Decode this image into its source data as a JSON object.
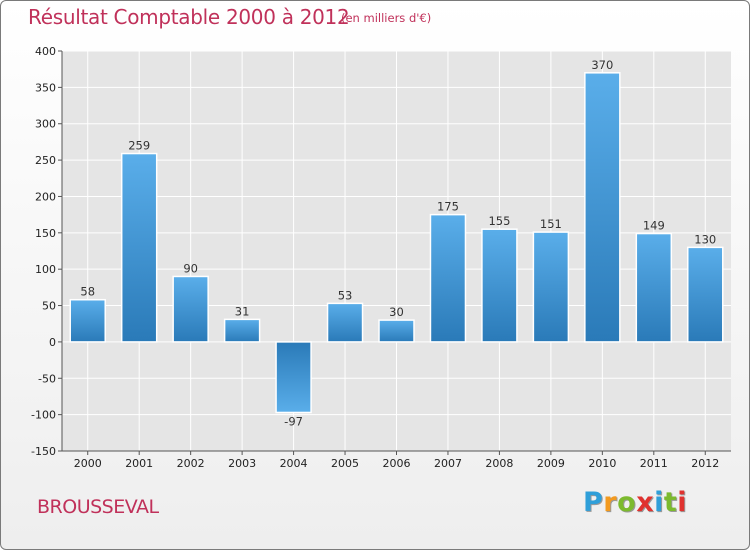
{
  "header": {
    "title": "Résultat Comptable 2000 à 2012",
    "subtitle": "(en milliers d'€)"
  },
  "footer": {
    "place": "BROUSSEVAL",
    "logo_letters": [
      "P",
      "r",
      "o",
      "x",
      "i",
      "t",
      "i"
    ],
    "logo_colors": [
      "#2f9fd9",
      "#f39a1f",
      "#7cba2e",
      "#e0322f",
      "#2f9fd9",
      "#7cba2e",
      "#e0322f"
    ]
  },
  "chart_data": {
    "type": "bar",
    "title": "Résultat Comptable 2000 à 2012",
    "subtitle": "(en milliers d'€)",
    "xlabel": "",
    "ylabel": "",
    "categories": [
      "2000",
      "2001",
      "2002",
      "2003",
      "2004",
      "2005",
      "2006",
      "2007",
      "2008",
      "2009",
      "2010",
      "2011",
      "2012"
    ],
    "values": [
      58,
      259,
      90,
      31,
      -97,
      53,
      30,
      175,
      155,
      151,
      370,
      149,
      130
    ],
    "labels": [
      "58",
      "259",
      "90",
      "31",
      "-97",
      "53",
      "30",
      "175",
      "155",
      "151",
      "370",
      "149",
      "130"
    ],
    "ylim": [
      -150,
      400
    ],
    "yticks": [
      -150,
      -100,
      -50,
      0,
      50,
      100,
      150,
      200,
      250,
      300,
      350,
      400
    ],
    "grid": true,
    "bar_color_top": "#5aaeea",
    "bar_color_bottom": "#2a7ab8"
  }
}
